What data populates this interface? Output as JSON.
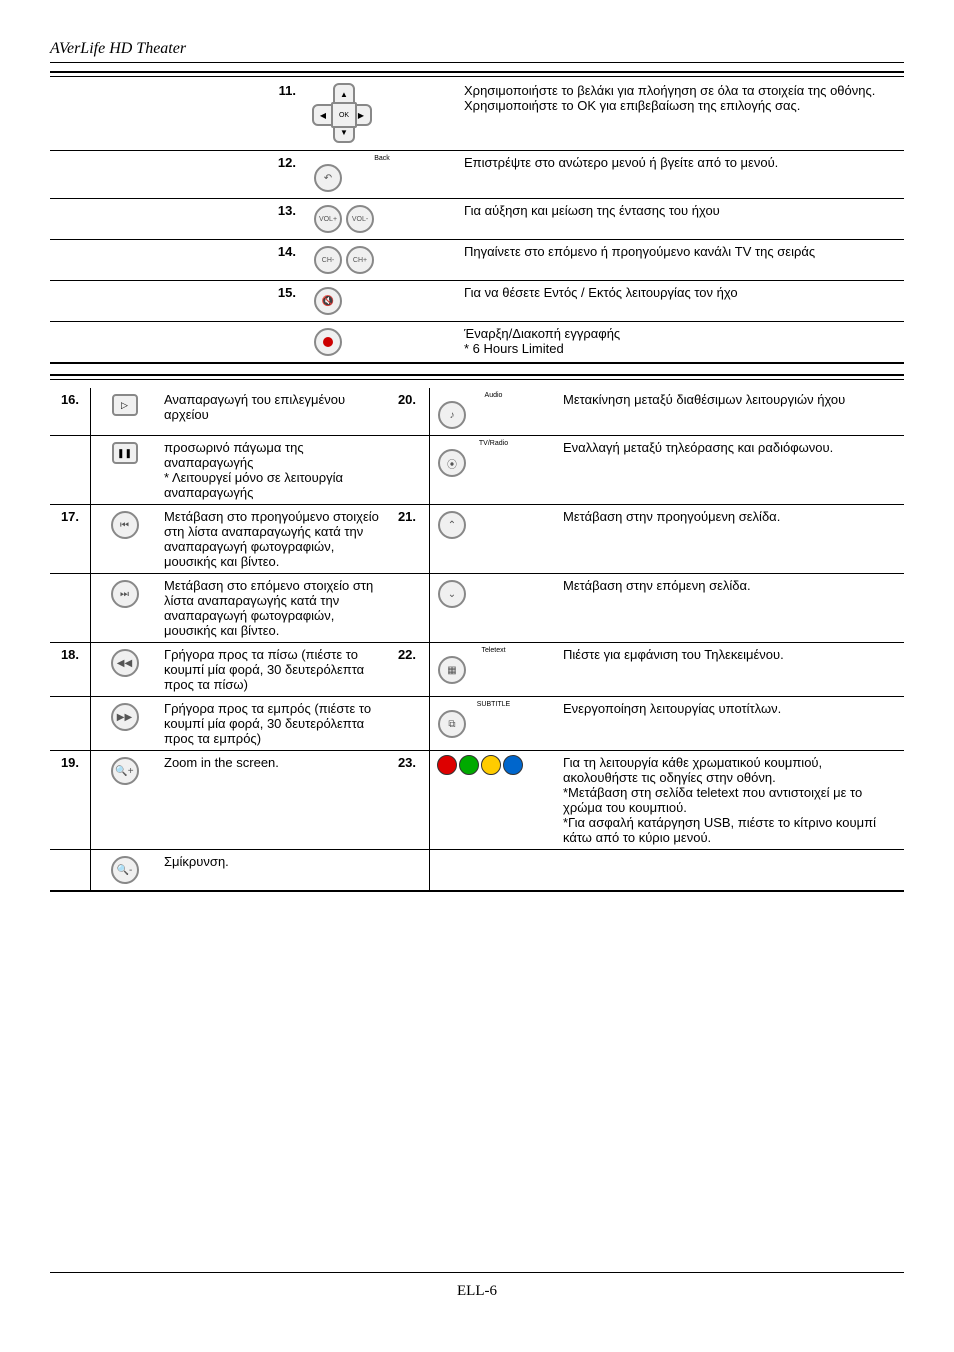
{
  "header": {
    "title": "AVerLife HD Theater"
  },
  "footer": {
    "page": "ELL-6"
  },
  "topRows": [
    {
      "num": "11.",
      "icon": "dpad",
      "desc": "Χρησιμοποιήστε το βελάκι για πλοήγηση σε όλα τα στοιχεία της οθόνης. Χρησιμοποιήστε το OK για επιβεβαίωση της επιλογής σας."
    },
    {
      "num": "12.",
      "icon": "back",
      "iconLabel": "Back",
      "desc": "Επιστρέψτε στο ανώτερο μενού ή βγείτε από το μενού."
    },
    {
      "num": "13.",
      "icon": "vol",
      "desc": "Για αύξηση και μείωση της έντασης του ήχου"
    },
    {
      "num": "14.",
      "icon": "ch",
      "desc": "Πηγαίνετε στο επόμενο ή προηγούμενο κανάλι TV της σειράς"
    },
    {
      "num": "15.",
      "icon": "mute",
      "desc": "Για να θέσετε Εντός / Εκτός λειτουργίας τον ήχο"
    },
    {
      "num": "",
      "icon": "rec",
      "desc": "Έναρξη/Διακοπή εγγραφής\n* 6 Hours Limited"
    }
  ],
  "bottomRows": [
    {
      "num": "16.",
      "icon": "play",
      "desc": "Αναπαραγωγή του επιλεγμένου αρχείου",
      "num2": "20.",
      "icon2": "audio",
      "icon2Label": "Audio",
      "desc2": "Μετακίνηση μεταξύ διαθέσιμων λειτουργιών ήχου"
    },
    {
      "num": "",
      "icon": "pause",
      "desc": "προσωρινό πάγωμα της αναπαραγωγής\n* Λειτουργεί μόνο σε λειτουργία αναπαραγωγής",
      "num2": "",
      "icon2": "tvradio",
      "icon2Label": "TV/Radio",
      "desc2": "Εναλλαγή μεταξύ τηλεόρασης και ραδιόφωνου."
    },
    {
      "num": "17.",
      "icon": "prev",
      "desc": "Μετάβαση στο προηγούμενο στοιχείο στη λίστα αναπαραγωγής κατά την αναπαραγωγή φωτογραφιών, μουσικής και βίντεο.",
      "num2": "21.",
      "icon2": "pageup",
      "desc2": "Μετάβαση στην προηγούμενη σελίδα."
    },
    {
      "num": "",
      "icon": "next",
      "desc": "Μετάβαση στο επόμενο στοιχείο στη λίστα αναπαραγωγής κατά την αναπαραγωγή φωτογραφιών, μουσικής και βίντεο.",
      "num2": "",
      "icon2": "pagedown",
      "desc2": "Μετάβαση στην επόμενη σελίδα."
    },
    {
      "num": "18.",
      "icon": "rewind",
      "desc": "Γρήγορα προς τα πίσω (πιέστε το κουμπί μία φορά, 30 δευτερόλεπτα προς τα πίσω)",
      "num2": "22.",
      "icon2": "teletext",
      "icon2Label": "Teletext",
      "desc2": "Πιέστε για εμφάνιση του Τηλεκειμένου."
    },
    {
      "num": "",
      "icon": "ffwd",
      "desc": "Γρήγορα προς τα εμπρός (πιέστε το κουμπί μία φορά, 30 δευτερόλεπτα προς τα εμπρός)",
      "num2": "",
      "icon2": "subtitle",
      "icon2Label": "SUBTITLE",
      "desc2": "Ενεργοποίηση λειτουργίας υποτίτλων."
    },
    {
      "num": "19.",
      "icon": "zoomin",
      "desc": "Zoom in the screen.",
      "num2": "23.",
      "icon2": "colors",
      "desc2": "Για τη λειτουργία κάθε χρωματικού κουμπιού, ακολουθήστε τις οδηγίες στην οθόνη.\n*Μετάβαση στη σελίδα teletext που αντιστοιχεί με το χρώμα του κουμπιού.\n*Για ασφαλή κατάργηση USB, πιέστε το κίτρινο κουμπί κάτω από το κύριο μενού."
    },
    {
      "num": "",
      "icon": "zoomout",
      "desc": "Σμίκρυνση.",
      "num2": "",
      "icon2": "",
      "desc2": ""
    }
  ],
  "colors": {
    "red": "#dd0000",
    "green": "#00aa00",
    "yellow": "#ffcc00",
    "blue": "#0066cc"
  }
}
